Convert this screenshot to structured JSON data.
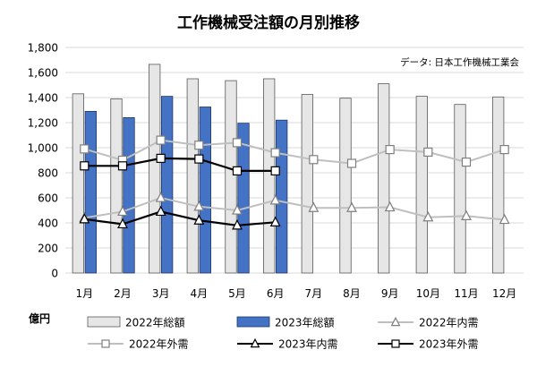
{
  "chart_data": {
    "type": "bar",
    "title": "工作機械受注額の月別推移",
    "source": "データ: 日本工作機械工業会",
    "unit_label": "億円",
    "categories": [
      "1月",
      "2月",
      "3月",
      "4月",
      "5月",
      "6月",
      "7月",
      "8月",
      "9月",
      "10月",
      "11月",
      "12月"
    ],
    "ylim": [
      0,
      1800
    ],
    "yticks": [
      "0",
      "200",
      "400",
      "600",
      "800",
      "1,000",
      "1,200",
      "1,400",
      "1,600",
      "1,800"
    ],
    "ytick_values": [
      0,
      200,
      400,
      600,
      800,
      1000,
      1200,
      1400,
      1600,
      1800
    ],
    "grid": true,
    "legend_position": "bottom",
    "series": [
      {
        "name": "2022年総額",
        "kind": "bar",
        "color": "#e6e6e6",
        "stroke": "#595959",
        "values": [
          1430,
          1390,
          1665,
          1550,
          1535,
          1550,
          1425,
          1395,
          1510,
          1410,
          1345,
          1405
        ]
      },
      {
        "name": "2023年総額",
        "kind": "bar",
        "color": "#4472c4",
        "stroke": "#1f3864",
        "values": [
          1290,
          1240,
          1410,
          1325,
          1195,
          1220,
          null,
          null,
          null,
          null,
          null,
          null
        ]
      },
      {
        "name": "2022年内需",
        "kind": "line",
        "marker": "triangle",
        "color": "#bfbfbf",
        "values": [
          440,
          490,
          600,
          530,
          500,
          580,
          520,
          520,
          525,
          445,
          455,
          425
        ]
      },
      {
        "name": "2022年外需",
        "kind": "line",
        "marker": "square",
        "color": "#bfbfbf",
        "values": [
          990,
          900,
          1060,
          1020,
          1040,
          960,
          905,
          875,
          985,
          965,
          885,
          985
        ]
      },
      {
        "name": "2023年内需",
        "kind": "line",
        "marker": "triangle",
        "color": "#000000",
        "values": [
          430,
          390,
          490,
          420,
          380,
          405,
          null,
          null,
          null,
          null,
          null,
          null
        ]
      },
      {
        "name": "2023年外需",
        "kind": "line",
        "marker": "square",
        "color": "#000000",
        "values": [
          855,
          855,
          915,
          910,
          815,
          815,
          null,
          null,
          null,
          null,
          null,
          null
        ]
      }
    ]
  }
}
